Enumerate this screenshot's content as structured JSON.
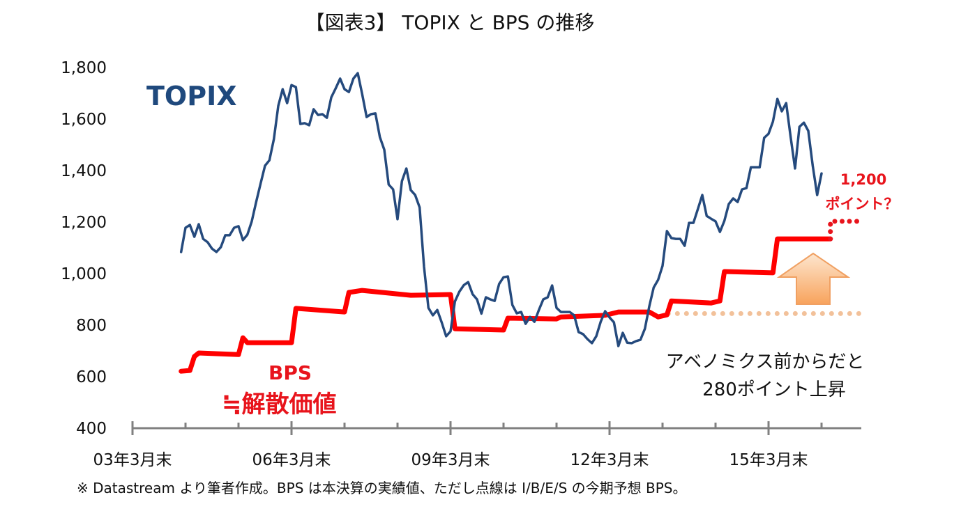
{
  "chart_data": {
    "type": "line",
    "title": "【図表3】 TOPIX と BPS の推移",
    "xlabel": "",
    "ylabel": "",
    "ylim": [
      400,
      1800
    ],
    "yticks": [
      400,
      600,
      800,
      1000,
      1200,
      1400,
      1600,
      1800
    ],
    "ytick_labels": [
      "400",
      "600",
      "800",
      "1,000",
      "1,200",
      "1,400",
      "1,600",
      "1,800"
    ],
    "xlim": [
      "2003-03",
      "2016-12"
    ],
    "xtick_labels": [
      {
        "date": "2003-03",
        "label": "03年3月末"
      },
      {
        "date": "2006-03",
        "label": "06年3月末"
      },
      {
        "date": "2009-03",
        "label": "09年3月末"
      },
      {
        "date": "2012-03",
        "label": "12年3月末"
      },
      {
        "date": "2015-03",
        "label": "15年3月末"
      }
    ],
    "grid": false,
    "series": [
      {
        "name": "TOPIX",
        "color": "#254a7d",
        "points": [
          [
            "2004-02",
            1084
          ],
          [
            "2004-03",
            1178
          ],
          [
            "2004-04",
            1189
          ],
          [
            "2004-05",
            1143
          ],
          [
            "2004-06",
            1192
          ],
          [
            "2004-07",
            1135
          ],
          [
            "2004-08",
            1122
          ],
          [
            "2004-09",
            1097
          ],
          [
            "2004-10",
            1084
          ],
          [
            "2004-11",
            1103
          ],
          [
            "2004-12",
            1149
          ],
          [
            "2005-01",
            1149
          ],
          [
            "2005-02",
            1178
          ],
          [
            "2005-03",
            1184
          ],
          [
            "2005-04",
            1130
          ],
          [
            "2005-05",
            1151
          ],
          [
            "2005-06",
            1203
          ],
          [
            "2005-07",
            1278
          ],
          [
            "2005-08",
            1350
          ],
          [
            "2005-09",
            1419
          ],
          [
            "2005-10",
            1440
          ],
          [
            "2005-11",
            1522
          ],
          [
            "2005-12",
            1651
          ],
          [
            "2006-01",
            1716
          ],
          [
            "2006-02",
            1662
          ],
          [
            "2006-03",
            1732
          ],
          [
            "2006-04",
            1724
          ],
          [
            "2006-05",
            1581
          ],
          [
            "2006-06",
            1584
          ],
          [
            "2006-07",
            1576
          ],
          [
            "2006-08",
            1638
          ],
          [
            "2006-09",
            1616
          ],
          [
            "2006-10",
            1619
          ],
          [
            "2006-11",
            1605
          ],
          [
            "2006-12",
            1684
          ],
          [
            "2007-01",
            1719
          ],
          [
            "2007-02",
            1757
          ],
          [
            "2007-03",
            1716
          ],
          [
            "2007-04",
            1705
          ],
          [
            "2007-05",
            1757
          ],
          [
            "2007-06",
            1778
          ],
          [
            "2007-07",
            1697
          ],
          [
            "2007-08",
            1608
          ],
          [
            "2007-09",
            1619
          ],
          [
            "2007-10",
            1622
          ],
          [
            "2007-11",
            1530
          ],
          [
            "2007-12",
            1481
          ],
          [
            "2008-01",
            1346
          ],
          [
            "2008-02",
            1327
          ],
          [
            "2008-03",
            1211
          ],
          [
            "2008-04",
            1359
          ],
          [
            "2008-05",
            1408
          ],
          [
            "2008-06",
            1324
          ],
          [
            "2008-07",
            1305
          ],
          [
            "2008-08",
            1257
          ],
          [
            "2008-09",
            1027
          ],
          [
            "2008-10",
            867
          ],
          [
            "2008-11",
            838
          ],
          [
            "2008-12",
            859
          ],
          [
            "2009-01",
            811
          ],
          [
            "2009-02",
            757
          ],
          [
            "2009-03",
            776
          ],
          [
            "2009-04",
            892
          ],
          [
            "2009-05",
            930
          ],
          [
            "2009-06",
            955
          ],
          [
            "2009-07",
            967
          ],
          [
            "2009-08",
            920
          ],
          [
            "2009-09",
            900
          ],
          [
            "2009-10",
            845
          ],
          [
            "2009-11",
            908
          ],
          [
            "2009-12",
            900
          ],
          [
            "2010-01",
            894
          ],
          [
            "2010-02",
            960
          ],
          [
            "2010-03",
            986
          ],
          [
            "2010-04",
            989
          ],
          [
            "2010-05",
            878
          ],
          [
            "2010-06",
            846
          ],
          [
            "2010-07",
            851
          ],
          [
            "2010-08",
            805
          ],
          [
            "2010-09",
            832
          ],
          [
            "2010-10",
            813
          ],
          [
            "2010-11",
            859
          ],
          [
            "2010-12",
            900
          ],
          [
            "2011-01",
            908
          ],
          [
            "2011-02",
            954
          ],
          [
            "2011-03",
            867
          ],
          [
            "2011-04",
            851
          ],
          [
            "2011-05",
            851
          ],
          [
            "2011-06",
            851
          ],
          [
            "2011-07",
            838
          ],
          [
            "2011-08",
            773
          ],
          [
            "2011-09",
            765
          ],
          [
            "2011-10",
            746
          ],
          [
            "2011-11",
            730
          ],
          [
            "2011-12",
            757
          ],
          [
            "2012-01",
            813
          ],
          [
            "2012-02",
            854
          ],
          [
            "2012-03",
            830
          ],
          [
            "2012-04",
            811
          ],
          [
            "2012-05",
            719
          ],
          [
            "2012-06",
            770
          ],
          [
            "2012-07",
            732
          ],
          [
            "2012-08",
            730
          ],
          [
            "2012-09",
            738
          ],
          [
            "2012-10",
            743
          ],
          [
            "2012-11",
            786
          ],
          [
            "2012-12",
            873
          ],
          [
            "2013-01",
            946
          ],
          [
            "2013-02",
            976
          ],
          [
            "2013-03",
            1030
          ],
          [
            "2013-04",
            1165
          ],
          [
            "2013-05",
            1138
          ],
          [
            "2013-06",
            1135
          ],
          [
            "2013-07",
            1135
          ],
          [
            "2013-08",
            1108
          ],
          [
            "2013-09",
            1197
          ],
          [
            "2013-10",
            1197
          ],
          [
            "2013-11",
            1251
          ],
          [
            "2013-12",
            1305
          ],
          [
            "2014-01",
            1224
          ],
          [
            "2014-02",
            1213
          ],
          [
            "2014-03",
            1203
          ],
          [
            "2014-04",
            1162
          ],
          [
            "2014-05",
            1205
          ],
          [
            "2014-06",
            1270
          ],
          [
            "2014-07",
            1292
          ],
          [
            "2014-08",
            1278
          ],
          [
            "2014-09",
            1327
          ],
          [
            "2014-10",
            1332
          ],
          [
            "2014-11",
            1413
          ],
          [
            "2014-12",
            1413
          ],
          [
            "2015-01",
            1413
          ],
          [
            "2015-02",
            1527
          ],
          [
            "2015-03",
            1543
          ],
          [
            "2015-04",
            1590
          ],
          [
            "2015-05",
            1678
          ],
          [
            "2015-06",
            1630
          ],
          [
            "2015-07",
            1662
          ],
          [
            "2015-08",
            1530
          ],
          [
            "2015-09",
            1408
          ],
          [
            "2015-10",
            1570
          ],
          [
            "2015-11",
            1586
          ],
          [
            "2015-12",
            1554
          ],
          [
            "2016-01",
            1420
          ],
          [
            "2016-02",
            1305
          ],
          [
            "2016-03",
            1389
          ]
        ]
      },
      {
        "name": "BPS",
        "color": "#ff0000",
        "points": [
          [
            "2004-02",
            621
          ],
          [
            "2004-04",
            624
          ],
          [
            "2004-05",
            678
          ],
          [
            "2004-06",
            692
          ],
          [
            "2005-03",
            686
          ],
          [
            "2005-04",
            751
          ],
          [
            "2005-05",
            732
          ],
          [
            "2006-03",
            732
          ],
          [
            "2006-04",
            865
          ],
          [
            "2007-03",
            851
          ],
          [
            "2007-04",
            927
          ],
          [
            "2007-07",
            935
          ],
          [
            "2008-06",
            916
          ],
          [
            "2009-03",
            919
          ],
          [
            "2009-04",
            786
          ],
          [
            "2010-03",
            781
          ],
          [
            "2010-04",
            827
          ],
          [
            "2011-03",
            824
          ],
          [
            "2011-04",
            832
          ],
          [
            "2012-02",
            838
          ],
          [
            "2012-05",
            851
          ],
          [
            "2012-12",
            851
          ],
          [
            "2013-02",
            832
          ],
          [
            "2013-04",
            840
          ],
          [
            "2013-05",
            894
          ],
          [
            "2014-02",
            886
          ],
          [
            "2014-04",
            894
          ],
          [
            "2014-05",
            1008
          ],
          [
            "2015-04",
            1003
          ],
          [
            "2015-05",
            1135
          ],
          [
            "2016-05",
            1135
          ]
        ]
      }
    ],
    "forecast_bps": {
      "style": "dotted",
      "color": "#e8141c",
      "points": [
        [
          "2016-05",
          1135
        ],
        [
          "2016-05",
          1203
        ],
        [
          "2016-12",
          1203
        ]
      ]
    },
    "reference_line": {
      "style": "dotted",
      "color": "#f2c19a",
      "value": 845,
      "from": "2013-04",
      "to": "2016-12"
    },
    "labels": {
      "topix": "TOPIX",
      "bps": "BPS",
      "bps_note": "≒解散価値"
    },
    "annotations": {
      "forecast_value": "1,200",
      "forecast_unit": "ポイント？",
      "rise_line1": "アベノミクス前からだと",
      "rise_line2": "280ポイント上昇",
      "arrow": "up-arrow",
      "arrow_color": "#f7a864"
    },
    "footnote": "※  Datastream より筆者作成。BPS は本決算の実績値、ただし点線は I/B/E/S の今期予想 BPS。"
  }
}
